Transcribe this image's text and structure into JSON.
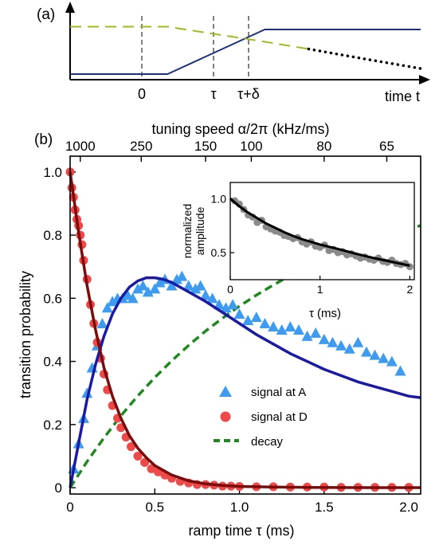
{
  "panel_a": {
    "label": "(a)",
    "tick_labels": [
      "0",
      "τ",
      "τ+δ"
    ],
    "axis_label": "time t",
    "colors": {
      "ramp": "#1f2f86",
      "decay_dashed": "#9cbf1e",
      "dots": "#000000"
    }
  },
  "panel_b": {
    "label": "(b)",
    "top_axis_label": "tuning speed α/2π (kHz/ms)",
    "inset_ylabel_line1": "normalized",
    "inset_ylabel_line2": "amplitude"
  },
  "chart_data": [
    {
      "type": "line",
      "panel": "(a)",
      "xlabel": "time t",
      "x_ticks": [
        "0",
        "τ",
        "τ+δ"
      ],
      "series": [
        {
          "style": "solid",
          "color": "#1f2f86",
          "points": [
            [
              -1.0,
              0.1
            ],
            [
              0.0,
              0.1
            ],
            [
              1.0,
              0.9
            ],
            [
              2.6,
              0.9
            ]
          ]
        },
        {
          "style": "dashed",
          "color": "#9cbf1e",
          "points": [
            [
              -1.0,
              0.95
            ],
            [
              0.0,
              0.95
            ],
            [
              1.0,
              0.68
            ],
            [
              1.45,
              0.55
            ]
          ]
        },
        {
          "style": "dotted",
          "color": "#000000",
          "points": [
            [
              1.45,
              0.55
            ],
            [
              2.0,
              0.38
            ],
            [
              2.6,
              0.2
            ]
          ]
        }
      ]
    },
    {
      "type": "scatter",
      "panel": "(b)",
      "xlabel": "ramp time τ (ms)",
      "ylabel": "transition probability",
      "top_xlabel": "tuning speed α/2π (kHz/ms)",
      "xlim": [
        0,
        2.07
      ],
      "ylim": [
        -0.02,
        1.05
      ],
      "x_ticks": [
        0,
        0.5,
        1.0,
        1.5,
        2.0
      ],
      "x_tick_labels": [
        "0",
        "0.5",
        "1.0",
        "1.5",
        "2.0"
      ],
      "y_ticks": [
        0,
        0.2,
        0.4,
        0.6,
        0.8,
        1.0
      ],
      "y_tick_labels": [
        "0",
        "0.2",
        "0.4",
        "0.6",
        "0.8",
        "1.0"
      ],
      "top_ticks": [
        0.06,
        0.42,
        0.8,
        1.07,
        1.5,
        1.87
      ],
      "top_tick_labels": [
        "1000",
        "250",
        "150",
        "100",
        "80",
        "65"
      ],
      "legend_position": "lower-right",
      "series": [
        {
          "name": "signal at A",
          "kind": "triangles",
          "color": "#3d9cf0",
          "x": [
            0.02,
            0.05,
            0.08,
            0.1,
            0.13,
            0.16,
            0.19,
            0.22,
            0.25,
            0.28,
            0.31,
            0.34,
            0.37,
            0.4,
            0.43,
            0.46,
            0.5,
            0.53,
            0.56,
            0.6,
            0.63,
            0.66,
            0.7,
            0.74,
            0.77,
            0.8,
            0.84,
            0.88,
            0.92,
            0.96,
            1.0,
            1.05,
            1.1,
            1.15,
            1.2,
            1.25,
            1.3,
            1.35,
            1.4,
            1.45,
            1.5,
            1.55,
            1.6,
            1.65,
            1.7,
            1.75,
            1.8,
            1.85,
            1.9,
            1.95
          ],
          "y": [
            0.06,
            0.14,
            0.22,
            0.3,
            0.38,
            0.45,
            0.52,
            0.57,
            0.59,
            0.6,
            0.6,
            0.61,
            0.6,
            0.63,
            0.64,
            0.62,
            0.63,
            0.65,
            0.66,
            0.64,
            0.66,
            0.67,
            0.64,
            0.63,
            0.64,
            0.61,
            0.6,
            0.58,
            0.57,
            0.58,
            0.55,
            0.53,
            0.54,
            0.52,
            0.51,
            0.5,
            0.51,
            0.5,
            0.48,
            0.49,
            0.47,
            0.46,
            0.45,
            0.44,
            0.46,
            0.43,
            0.42,
            0.41,
            0.4,
            0.37
          ]
        },
        {
          "name": "signal at D",
          "kind": "circles",
          "color": "#ee4848",
          "x": [
            0.0,
            0.01,
            0.02,
            0.03,
            0.04,
            0.05,
            0.06,
            0.07,
            0.08,
            0.1,
            0.12,
            0.14,
            0.16,
            0.18,
            0.2,
            0.22,
            0.25,
            0.28,
            0.3,
            0.33,
            0.36,
            0.4,
            0.44,
            0.48,
            0.52,
            0.56,
            0.6,
            0.65,
            0.7,
            0.75,
            0.8,
            0.85,
            0.9,
            0.95,
            1.0,
            1.1,
            1.2,
            1.3,
            1.4,
            1.5,
            1.6,
            1.7,
            1.8,
            1.9,
            2.0
          ],
          "y": [
            1.0,
            0.95,
            0.92,
            0.88,
            0.85,
            0.83,
            0.8,
            0.77,
            0.72,
            0.66,
            0.58,
            0.52,
            0.46,
            0.41,
            0.36,
            0.31,
            0.26,
            0.22,
            0.19,
            0.16,
            0.13,
            0.1,
            0.08,
            0.06,
            0.05,
            0.04,
            0.03,
            0.02,
            0.015,
            0.01,
            0.01,
            0.008,
            0.005,
            0.005,
            0.004,
            0.003,
            0.003,
            0.002,
            0.002,
            0.002,
            0.001,
            0.001,
            0.001,
            0.001,
            0.001
          ]
        },
        {
          "name": "decay",
          "kind": "dashed-line",
          "color": "#1e8a1e",
          "x": [
            0,
            0.1,
            0.2,
            0.3,
            0.4,
            0.5,
            0.6,
            0.7,
            0.8,
            0.9,
            1.0,
            1.1,
            1.2,
            1.3,
            1.4,
            1.5,
            1.6,
            1.7,
            1.8,
            1.9,
            2.0,
            2.07
          ],
          "y": [
            0,
            0.083,
            0.158,
            0.228,
            0.291,
            0.349,
            0.402,
            0.451,
            0.496,
            0.537,
            0.575,
            0.61,
            0.642,
            0.672,
            0.699,
            0.724,
            0.747,
            0.768,
            0.787,
            0.805,
            0.821,
            0.83
          ]
        },
        {
          "kind": "solid-line",
          "color": "#1a1aa6",
          "x": [
            0,
            0.05,
            0.1,
            0.15,
            0.2,
            0.25,
            0.3,
            0.35,
            0.4,
            0.45,
            0.5,
            0.55,
            0.6,
            0.7,
            0.8,
            0.9,
            1.0,
            1.1,
            1.2,
            1.3,
            1.4,
            1.5,
            1.6,
            1.7,
            1.8,
            1.9,
            2.0,
            2.07
          ],
          "y": [
            0,
            0.14,
            0.28,
            0.39,
            0.48,
            0.55,
            0.6,
            0.635,
            0.655,
            0.665,
            0.665,
            0.66,
            0.65,
            0.62,
            0.59,
            0.555,
            0.52,
            0.485,
            0.455,
            0.425,
            0.4,
            0.375,
            0.355,
            0.335,
            0.32,
            0.305,
            0.29,
            0.285
          ]
        },
        {
          "kind": "solid-line",
          "color": "#7a0c0c",
          "x": [
            0,
            0.05,
            0.1,
            0.15,
            0.2,
            0.25,
            0.3,
            0.35,
            0.4,
            0.45,
            0.5,
            0.6,
            0.7,
            0.8,
            0.9,
            1.0,
            1.2,
            1.4,
            1.6,
            1.8,
            2.07
          ],
          "y": [
            1.0,
            0.81,
            0.64,
            0.5,
            0.38,
            0.29,
            0.22,
            0.165,
            0.125,
            0.095,
            0.07,
            0.04,
            0.022,
            0.012,
            0.007,
            0.004,
            0.002,
            0.001,
            0.0005,
            0.0003,
            0.0001
          ]
        }
      ]
    },
    {
      "type": "scatter",
      "panel": "inset",
      "xlabel": "τ (ms)",
      "ylabel": "normalized amplitude",
      "xlim": [
        0,
        2.05
      ],
      "ylim": [
        0.25,
        1.15
      ],
      "x_ticks": [
        0,
        1,
        2
      ],
      "x_tick_labels": [
        "0",
        "1",
        "2"
      ],
      "y_ticks": [
        0.5,
        1.0
      ],
      "y_tick_labels": [
        "0.5",
        "1.0"
      ],
      "series": [
        {
          "kind": "circles",
          "color": "#8a8a8a",
          "x": [
            0.05,
            0.1,
            0.15,
            0.2,
            0.25,
            0.3,
            0.35,
            0.4,
            0.45,
            0.5,
            0.55,
            0.6,
            0.65,
            0.7,
            0.75,
            0.8,
            0.85,
            0.9,
            0.95,
            1.0,
            1.05,
            1.1,
            1.15,
            1.2,
            1.25,
            1.3,
            1.35,
            1.4,
            1.45,
            1.5,
            1.55,
            1.6,
            1.65,
            1.7,
            1.75,
            1.8,
            1.85,
            1.9,
            1.95,
            2.0
          ],
          "y": [
            0.98,
            0.95,
            0.9,
            0.85,
            0.83,
            0.78,
            0.8,
            0.74,
            0.72,
            0.7,
            0.69,
            0.66,
            0.65,
            0.63,
            0.64,
            0.6,
            0.58,
            0.6,
            0.56,
            0.55,
            0.57,
            0.52,
            0.53,
            0.5,
            0.51,
            0.48,
            0.49,
            0.47,
            0.45,
            0.46,
            0.44,
            0.43,
            0.45,
            0.42,
            0.41,
            0.43,
            0.4,
            0.39,
            0.4,
            0.37
          ]
        },
        {
          "kind": "solid-line",
          "color": "#000000",
          "x": [
            0,
            0.1,
            0.2,
            0.3,
            0.4,
            0.5,
            0.6,
            0.7,
            0.8,
            0.9,
            1.0,
            1.2,
            1.4,
            1.6,
            1.8,
            2.0
          ],
          "y": [
            1.0,
            0.93,
            0.87,
            0.82,
            0.77,
            0.73,
            0.69,
            0.655,
            0.625,
            0.6,
            0.575,
            0.535,
            0.49,
            0.45,
            0.415,
            0.38
          ]
        }
      ]
    }
  ]
}
